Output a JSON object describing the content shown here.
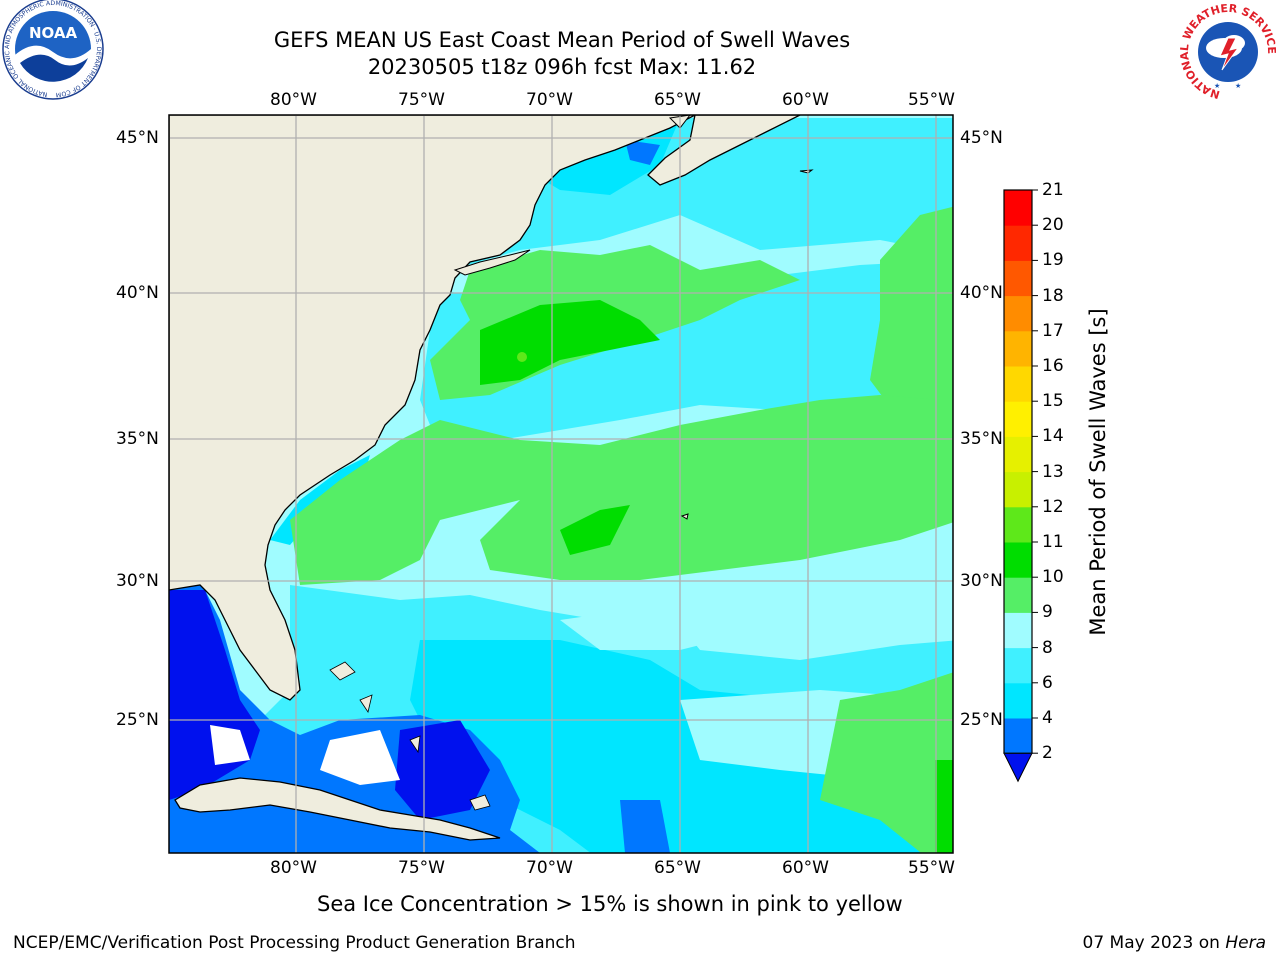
{
  "title": {
    "line1": "GEFS MEAN US East Coast Mean Period of Swell Waves",
    "line2": "20230505 t18z 096h fcst   Max: 11.62"
  },
  "map": {
    "lon_labels": [
      "80°W",
      "75°W",
      "70°W",
      "65°W",
      "60°W",
      "55°W"
    ],
    "lat_labels": [
      "45°N",
      "40°N",
      "35°N",
      "30°N",
      "25°N"
    ],
    "extent": {
      "lon": [
        -85,
        -54.5
      ],
      "lat": [
        20.5,
        46
      ]
    },
    "grid": true,
    "colors": {
      "land": "#efedde",
      "coast": "#000000",
      "grid": "#b0b0b0"
    }
  },
  "colorbar": {
    "label": "Mean Period of Swell Waves [s]",
    "ticks": [
      "2",
      "4",
      "6",
      "8",
      "9",
      "10",
      "11",
      "12",
      "13",
      "14",
      "15",
      "16",
      "17",
      "18",
      "19",
      "20",
      "21"
    ],
    "colors": [
      "#0011ee",
      "#0077ff",
      "#00e6ff",
      "#40f0ff",
      "#a0fcff",
      "#55ee66",
      "#00dd00",
      "#5ee81a",
      "#c8f000",
      "#e6f000",
      "#fff000",
      "#ffd800",
      "#ffb400",
      "#ff8c00",
      "#ff5800",
      "#ff2800",
      "#ff0000"
    ]
  },
  "caption": "Sea Ice Concentration > 15% is shown in pink to yellow",
  "footer": {
    "left": "NCEP/EMC/Verification Post Processing Product Generation Branch",
    "date": "07 May 2023 on",
    "machine": "Hera"
  },
  "logos": {
    "noaa_text": "NOAA",
    "noaa_ring": "NATIONAL OCEANIC AND ATMOSPHERIC ADMINISTRATION · U.S. DEPARTMENT OF COMMERCE",
    "nws_ring": "NATIONAL WEATHER SERVICE"
  }
}
